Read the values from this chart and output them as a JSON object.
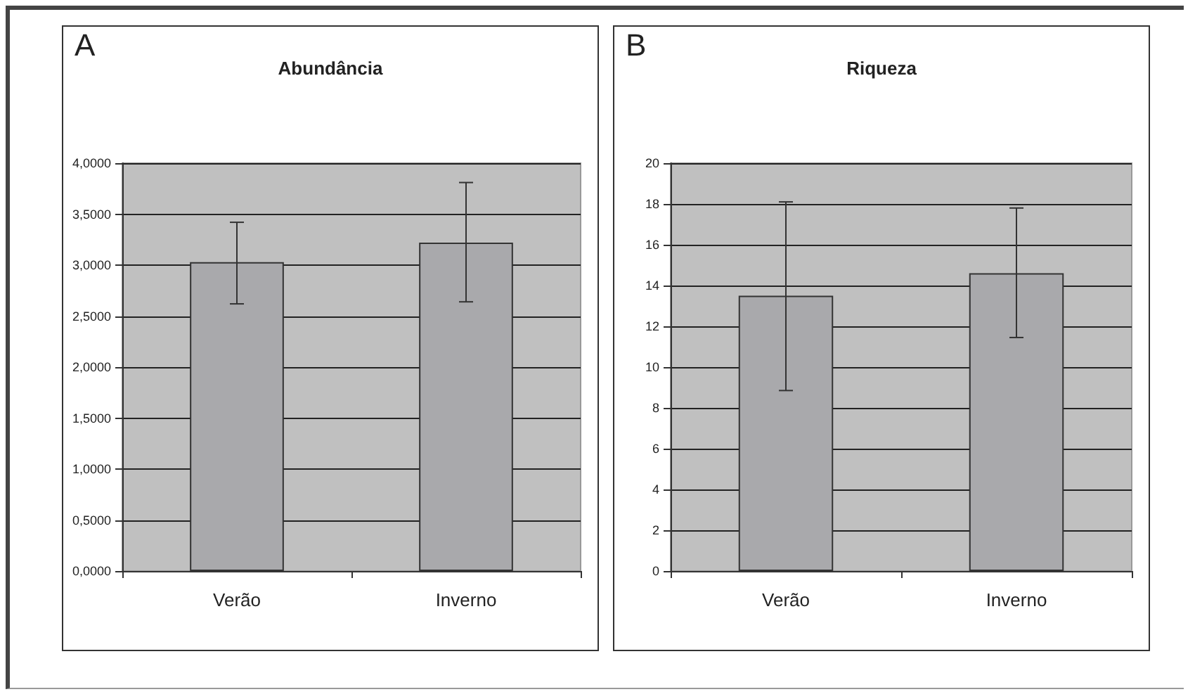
{
  "chart_data": [
    {
      "type": "bar",
      "title": "Abundância",
      "annotations": [
        "A"
      ],
      "categories": [
        "Verão",
        "Inverno"
      ],
      "values": [
        3.03,
        3.22
      ],
      "color": "#a9a9ac",
      "errors": [
        [
          2.62,
          3.42
        ],
        [
          2.64,
          3.81
        ]
      ],
      "ylim": [
        0,
        4
      ],
      "yticks": [
        {
          "value": 0,
          "label": "0,0000"
        },
        {
          "value": 0.5,
          "label": "0,5000"
        },
        {
          "value": 1,
          "label": "1,0000"
        },
        {
          "value": 1.5,
          "label": "1,5000"
        },
        {
          "value": 2,
          "label": "2,0000"
        },
        {
          "value": 2.5,
          "label": "2,5000"
        },
        {
          "value": 3,
          "label": "3,0000"
        },
        {
          "value": 3.5,
          "label": "3,5000"
        },
        {
          "value": 4,
          "label": "4,0000"
        }
      ],
      "grid": "y"
    },
    {
      "type": "bar",
      "title": "Riqueza",
      "annotations": [
        "B"
      ],
      "categories": [
        "Verão",
        "Inverno"
      ],
      "values": [
        13.5,
        14.6
      ],
      "color": "#a9a9ac",
      "errors": [
        [
          8.85,
          18.1
        ],
        [
          11.45,
          17.8
        ]
      ],
      "ylim": [
        0,
        20
      ],
      "yticks": [
        0,
        2,
        4,
        6,
        8,
        10,
        12,
        14,
        16,
        18,
        20
      ],
      "grid": "y"
    }
  ]
}
